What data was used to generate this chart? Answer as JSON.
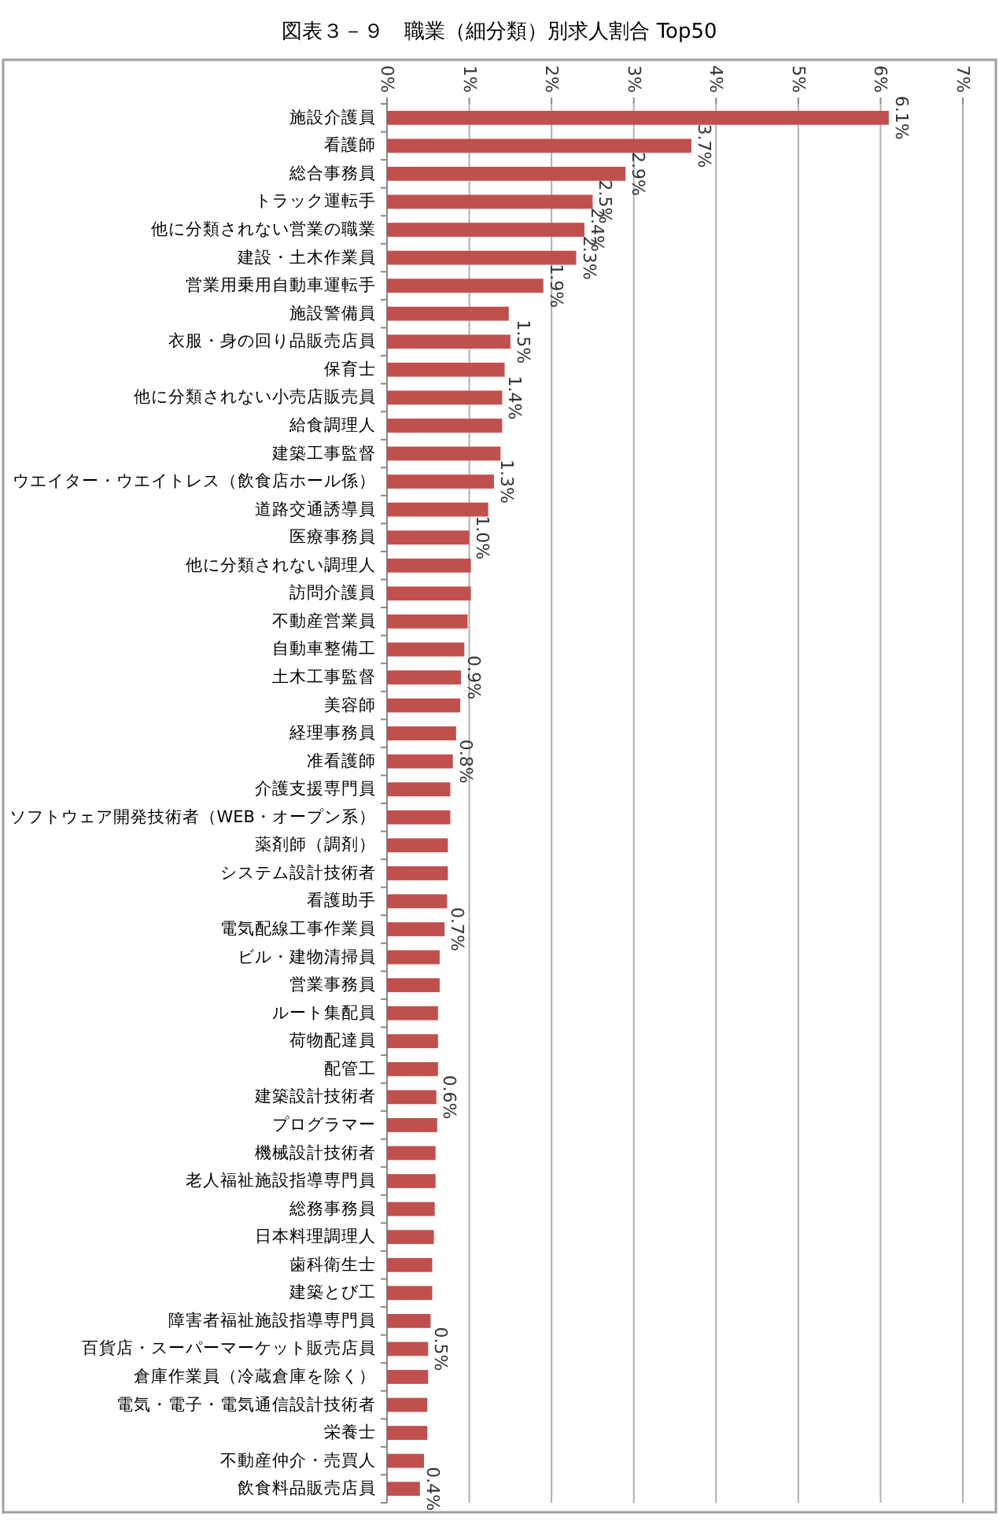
{
  "chart_data": {
    "type": "bar",
    "orientation": "horizontal",
    "title": "図表３－９　職業（細分類）別求人割合 Top50",
    "categories": [
      "施設介護員",
      "看護師",
      "総合事務員",
      "トラック運転手",
      "他に分類されない営業の職業",
      "建設・土木作業員",
      "営業用乗用自動車運転手",
      "施設警備員",
      "衣服・身の回り品販売店員",
      "保育士",
      "他に分類されない小売店販売員",
      "給食調理人",
      "建築工事監督",
      "ウエイター・ウエイトレス（飲食店ホール係）",
      "道路交通誘導員",
      "医療事務員",
      "他に分類されない調理人",
      "訪問介護員",
      "不動産営業員",
      "自動車整備工",
      "土木工事監督",
      "美容師",
      "経理事務員",
      "准看護師",
      "介護支援専門員",
      "ソフトウェア開発技術者（WEB・オープン系）",
      "薬剤師（調剤）",
      "システム設計技術者",
      "看護助手",
      "電気配線工事作業員",
      "ビル・建物清掃員",
      "営業事務員",
      "ルート集配員",
      "荷物配達員",
      "配管工",
      "建築設計技術者",
      "プログラマー",
      "機械設計技術者",
      "老人福祉施設指導専門員",
      "総務事務員",
      "日本料理調理人",
      "歯科衛生士",
      "建築とび工",
      "障害者福祉施設指導専門員",
      "百貨店・スーパーマーケット販売店員",
      "倉庫作業員（冷蔵倉庫を除く）",
      "電気・電子・電気通信設計技術者",
      "栄養士",
      "不動産仲介・売買人",
      "飲食料品販売店員"
    ],
    "values": [
      6.1,
      3.7,
      2.9,
      2.5,
      2.4,
      2.3,
      1.9,
      1.48,
      1.5,
      1.43,
      1.4,
      1.4,
      1.38,
      1.3,
      1.23,
      1.0,
      1.02,
      1.02,
      0.98,
      0.94,
      0.9,
      0.89,
      0.84,
      0.8,
      0.77,
      0.77,
      0.74,
      0.74,
      0.73,
      0.7,
      0.64,
      0.64,
      0.62,
      0.62,
      0.62,
      0.6,
      0.61,
      0.59,
      0.59,
      0.58,
      0.57,
      0.55,
      0.55,
      0.53,
      0.5,
      0.5,
      0.49,
      0.49,
      0.45,
      0.4
    ],
    "value_labels": [
      "6.1%",
      "3.7%",
      "2.9%",
      "2.5%",
      "2.4%",
      "2.3%",
      "1.9%",
      null,
      "1.5%",
      null,
      "1.4%",
      null,
      null,
      "1.3%",
      null,
      "1.0%",
      null,
      null,
      null,
      null,
      "0.9%",
      null,
      null,
      "0.8%",
      null,
      null,
      null,
      null,
      null,
      "0.7%",
      null,
      null,
      null,
      null,
      null,
      "0.6%",
      null,
      null,
      null,
      null,
      null,
      null,
      null,
      null,
      "0.5%",
      null,
      null,
      null,
      null,
      "0.4%"
    ],
    "color": "#c0504d",
    "xlim": [
      0,
      7
    ],
    "xticks": [
      {
        "value": 0,
        "label": "0%"
      },
      {
        "value": 1,
        "label": "1%"
      },
      {
        "value": 2,
        "label": "2%"
      },
      {
        "value": 3,
        "label": "3%"
      },
      {
        "value": 4,
        "label": "4%"
      },
      {
        "value": 5,
        "label": "5%"
      },
      {
        "value": 6,
        "label": "6%"
      },
      {
        "value": 7,
        "label": "7%"
      }
    ],
    "grid": "x"
  }
}
